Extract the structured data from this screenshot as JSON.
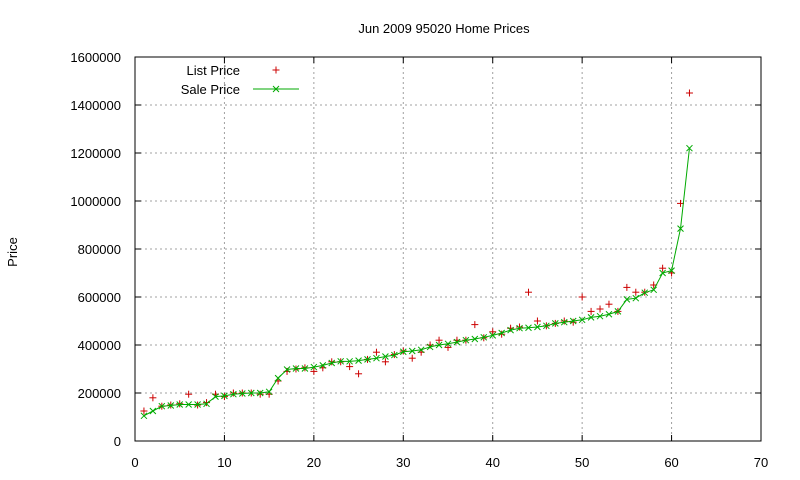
{
  "chart_data": {
    "type": "scatter",
    "title": "Jun 2009 95020 Home Prices",
    "xlabel": "",
    "ylabel": "Price",
    "xlim": [
      0,
      70
    ],
    "ylim": [
      0,
      1600000
    ],
    "xticks": [
      0,
      10,
      20,
      30,
      40,
      50,
      60,
      70
    ],
    "yticks": [
      0,
      200000,
      400000,
      600000,
      800000,
      1000000,
      1200000,
      1400000,
      1600000
    ],
    "grid": true,
    "legend_position": "top-left",
    "series": [
      {
        "name": "List Price",
        "marker": "+",
        "color": "#cc0000",
        "line": false,
        "points": [
          [
            1,
            125000
          ],
          [
            2,
            180000
          ],
          [
            3,
            145000
          ],
          [
            4,
            150000
          ],
          [
            5,
            155000
          ],
          [
            6,
            195000
          ],
          [
            7,
            150000
          ],
          [
            8,
            160000
          ],
          [
            9,
            195000
          ],
          [
            10,
            185000
          ],
          [
            11,
            200000
          ],
          [
            12,
            200000
          ],
          [
            13,
            200000
          ],
          [
            14,
            195000
          ],
          [
            15,
            195000
          ],
          [
            16,
            250000
          ],
          [
            17,
            290000
          ],
          [
            18,
            300000
          ],
          [
            19,
            305000
          ],
          [
            20,
            290000
          ],
          [
            21,
            305000
          ],
          [
            22,
            330000
          ],
          [
            23,
            330000
          ],
          [
            24,
            310000
          ],
          [
            25,
            280000
          ],
          [
            26,
            340000
          ],
          [
            27,
            370000
          ],
          [
            28,
            330000
          ],
          [
            29,
            360000
          ],
          [
            30,
            375000
          ],
          [
            31,
            345000
          ],
          [
            32,
            370000
          ],
          [
            33,
            400000
          ],
          [
            34,
            420000
          ],
          [
            35,
            390000
          ],
          [
            36,
            420000
          ],
          [
            37,
            420000
          ],
          [
            38,
            485000
          ],
          [
            39,
            430000
          ],
          [
            40,
            455000
          ],
          [
            41,
            445000
          ],
          [
            42,
            470000
          ],
          [
            43,
            475000
          ],
          [
            44,
            620000
          ],
          [
            45,
            500000
          ],
          [
            46,
            480000
          ],
          [
            47,
            490000
          ],
          [
            48,
            500000
          ],
          [
            49,
            495000
          ],
          [
            50,
            600000
          ],
          [
            51,
            540000
          ],
          [
            52,
            550000
          ],
          [
            53,
            570000
          ],
          [
            54,
            540000
          ],
          [
            55,
            640000
          ],
          [
            56,
            620000
          ],
          [
            57,
            620000
          ],
          [
            58,
            650000
          ],
          [
            59,
            720000
          ],
          [
            60,
            700000
          ],
          [
            61,
            990000
          ],
          [
            62,
            1450000
          ]
        ]
      },
      {
        "name": "Sale Price",
        "marker": "x",
        "color": "#00aa00",
        "line": true,
        "points": [
          [
            1,
            105000
          ],
          [
            2,
            125000
          ],
          [
            3,
            145000
          ],
          [
            4,
            148000
          ],
          [
            5,
            152000
          ],
          [
            6,
            152000
          ],
          [
            7,
            152000
          ],
          [
            8,
            155000
          ],
          [
            9,
            185000
          ],
          [
            10,
            188000
          ],
          [
            11,
            195000
          ],
          [
            12,
            198000
          ],
          [
            13,
            200000
          ],
          [
            14,
            200000
          ],
          [
            15,
            205000
          ],
          [
            16,
            262000
          ],
          [
            17,
            298000
          ],
          [
            18,
            302000
          ],
          [
            19,
            302000
          ],
          [
            20,
            308000
          ],
          [
            21,
            315000
          ],
          [
            22,
            325000
          ],
          [
            23,
            332000
          ],
          [
            24,
            332000
          ],
          [
            25,
            335000
          ],
          [
            26,
            340000
          ],
          [
            27,
            345000
          ],
          [
            28,
            352000
          ],
          [
            29,
            358000
          ],
          [
            30,
            372000
          ],
          [
            31,
            375000
          ],
          [
            32,
            380000
          ],
          [
            33,
            392000
          ],
          [
            34,
            400000
          ],
          [
            35,
            405000
          ],
          [
            36,
            412000
          ],
          [
            37,
            420000
          ],
          [
            38,
            425000
          ],
          [
            39,
            432000
          ],
          [
            40,
            440000
          ],
          [
            41,
            450000
          ],
          [
            42,
            462000
          ],
          [
            43,
            470000
          ],
          [
            44,
            472000
          ],
          [
            45,
            475000
          ],
          [
            46,
            480000
          ],
          [
            47,
            490000
          ],
          [
            48,
            495000
          ],
          [
            49,
            500000
          ],
          [
            50,
            505000
          ],
          [
            51,
            515000
          ],
          [
            52,
            520000
          ],
          [
            53,
            528000
          ],
          [
            54,
            540000
          ],
          [
            55,
            590000
          ],
          [
            56,
            595000
          ],
          [
            57,
            618000
          ],
          [
            58,
            630000
          ],
          [
            59,
            700000
          ],
          [
            60,
            710000
          ],
          [
            61,
            885000
          ],
          [
            62,
            1220000
          ]
        ]
      }
    ]
  }
}
